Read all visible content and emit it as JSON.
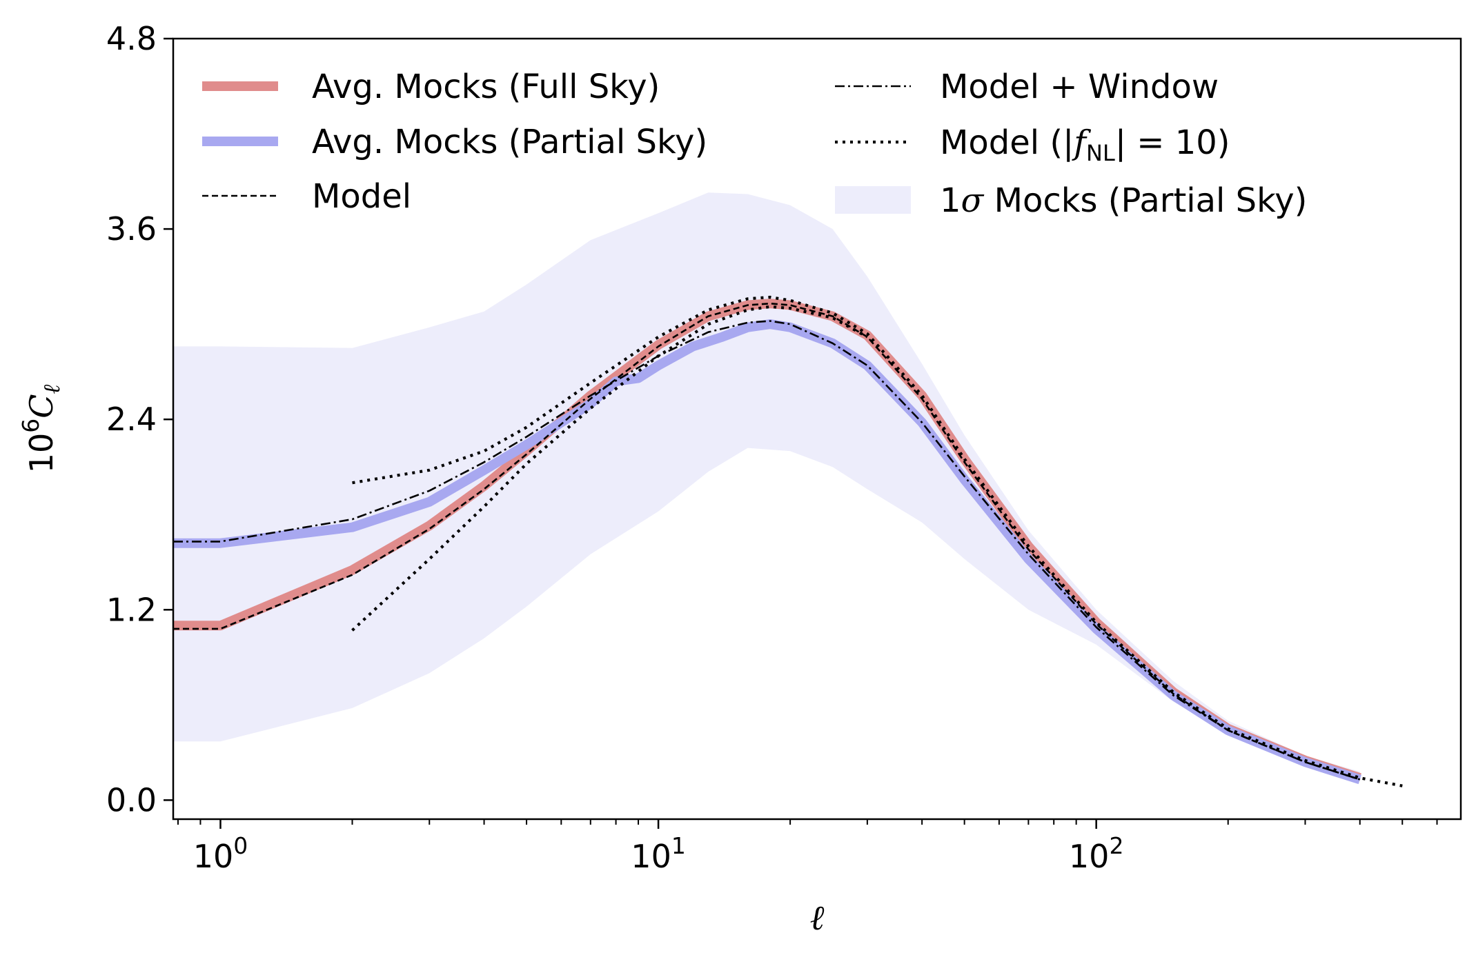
{
  "chart_data": {
    "type": "line",
    "x_scale": "log",
    "xlabel": "ℓ",
    "ylabel": "10⁶C_ℓ",
    "xlim": [
      0.78,
      680
    ],
    "ylim": [
      -0.12,
      4.8
    ],
    "x_ticks": [
      {
        "value": 1,
        "label_base": "10",
        "label_exp": "0"
      },
      {
        "value": 10,
        "label_base": "10",
        "label_exp": "1"
      },
      {
        "value": 100,
        "label_base": "10",
        "label_exp": "2"
      }
    ],
    "y_ticks": [
      {
        "value": 0.0,
        "label": "0.0"
      },
      {
        "value": 1.2,
        "label": "1.2"
      },
      {
        "value": 2.4,
        "label": "2.4"
      },
      {
        "value": 3.6,
        "label": "3.6"
      },
      {
        "value": 4.8,
        "label": "4.8"
      }
    ],
    "grid": false,
    "legend_position": "top",
    "band": {
      "name": "1σ Mocks (Partial Sky)",
      "color": "#ededfb",
      "x": [
        0.78,
        1,
        2,
        3,
        4,
        5,
        7,
        10,
        13,
        16,
        20,
        25,
        30,
        40,
        50,
        70,
        100,
        150,
        200,
        300,
        400
      ],
      "upper": [
        2.86,
        2.86,
        2.85,
        2.98,
        3.08,
        3.25,
        3.53,
        3.7,
        3.83,
        3.82,
        3.75,
        3.6,
        3.3,
        2.75,
        2.3,
        1.7,
        1.2,
        0.75,
        0.5,
        0.28,
        0.18
      ],
      "lower": [
        0.37,
        0.37,
        0.58,
        0.8,
        1.02,
        1.22,
        1.55,
        1.82,
        2.07,
        2.22,
        2.2,
        2.1,
        1.96,
        1.75,
        1.52,
        1.2,
        0.98,
        0.62,
        0.42,
        0.24,
        0.14
      ]
    },
    "series": [
      {
        "name": "Avg. Mocks (Full Sky)",
        "color": "#e08c8c",
        "style": "thick",
        "x": [
          0.78,
          1,
          2,
          3,
          4,
          5,
          7,
          10,
          13,
          16,
          18,
          20,
          25,
          30,
          40,
          50,
          70,
          100,
          150,
          200,
          300,
          400
        ],
        "y": [
          1.1,
          1.1,
          1.45,
          1.73,
          1.98,
          2.2,
          2.55,
          2.87,
          3.05,
          3.12,
          3.13,
          3.12,
          3.05,
          2.93,
          2.55,
          2.15,
          1.6,
          1.12,
          0.68,
          0.45,
          0.25,
          0.14
        ]
      },
      {
        "name": "Avg. Mocks (Partial Sky)",
        "color": "#a8a8f0",
        "style": "thick",
        "x": [
          0.78,
          1,
          2,
          3,
          4,
          5,
          7,
          8,
          9,
          10,
          12,
          14,
          16,
          18,
          20,
          25,
          30,
          40,
          50,
          70,
          100,
          150,
          200,
          300,
          400
        ],
        "y": [
          1.62,
          1.62,
          1.72,
          1.88,
          2.08,
          2.24,
          2.5,
          2.64,
          2.66,
          2.74,
          2.86,
          2.92,
          2.98,
          3.0,
          2.98,
          2.88,
          2.74,
          2.38,
          2.02,
          1.52,
          1.08,
          0.66,
          0.44,
          0.24,
          0.13
        ]
      },
      {
        "name": "Model",
        "color": "#000000",
        "style": "dashed",
        "x": [
          0.78,
          1,
          2,
          3,
          4,
          5,
          7,
          10,
          13,
          16,
          18,
          20,
          25,
          30,
          40,
          50,
          70,
          100,
          150,
          200,
          300,
          400
        ],
        "y": [
          1.08,
          1.08,
          1.42,
          1.71,
          1.96,
          2.18,
          2.53,
          2.86,
          3.05,
          3.12,
          3.13,
          3.12,
          3.05,
          2.92,
          2.53,
          2.13,
          1.58,
          1.11,
          0.67,
          0.44,
          0.24,
          0.13
        ]
      },
      {
        "name": "Model + Window",
        "color": "#000000",
        "style": "dashdot",
        "x": [
          0.78,
          1,
          2,
          3,
          4,
          5,
          7,
          10,
          13,
          16,
          18,
          20,
          25,
          30,
          40,
          50,
          70,
          100,
          150,
          200,
          300,
          400
        ],
        "y": [
          1.63,
          1.63,
          1.77,
          1.95,
          2.13,
          2.29,
          2.55,
          2.8,
          2.95,
          3.01,
          3.02,
          3.0,
          2.88,
          2.74,
          2.38,
          2.04,
          1.55,
          1.09,
          0.66,
          0.44,
          0.24,
          0.13
        ]
      },
      {
        "name": "Model (|f_NL| = 10)",
        "color": "#000000",
        "style": "dotted",
        "x": [
          2,
          3,
          4,
          5,
          7,
          10,
          13,
          16,
          18,
          20,
          25,
          30,
          40,
          50,
          70,
          100,
          150,
          200,
          300,
          400,
          500
        ],
        "y": [
          2.0,
          2.08,
          2.2,
          2.35,
          2.63,
          2.92,
          3.09,
          3.16,
          3.17,
          3.15,
          3.07,
          2.94,
          2.55,
          2.15,
          1.6,
          1.12,
          0.68,
          0.45,
          0.25,
          0.14,
          0.09
        ]
      },
      {
        "name": "Model (|f_NL| = 10) lower",
        "color": "#000000",
        "style": "dotted",
        "x": [
          2,
          3,
          4,
          5,
          7,
          10,
          13,
          16,
          18,
          20,
          25,
          30
        ],
        "y": [
          1.07,
          1.52,
          1.85,
          2.12,
          2.47,
          2.8,
          3.0,
          3.09,
          3.11,
          3.1,
          3.04,
          2.92
        ]
      }
    ],
    "legend": [
      {
        "label": "Avg. Mocks (Full Sky)",
        "style": "thick",
        "color": "#e08c8c"
      },
      {
        "label": "Avg. Mocks (Partial Sky)",
        "style": "thick",
        "color": "#a8a8f0"
      },
      {
        "label": "Model",
        "style": "dashed",
        "color": "#000000"
      },
      {
        "label": "Model + Window",
        "style": "dashdot",
        "color": "#000000"
      },
      {
        "label": "Model (|f_NL| = 10)",
        "style": "dotted",
        "color": "#000000"
      },
      {
        "label": "1σ Mocks (Partial Sky)",
        "style": "band",
        "color": "#ededfb"
      }
    ]
  }
}
